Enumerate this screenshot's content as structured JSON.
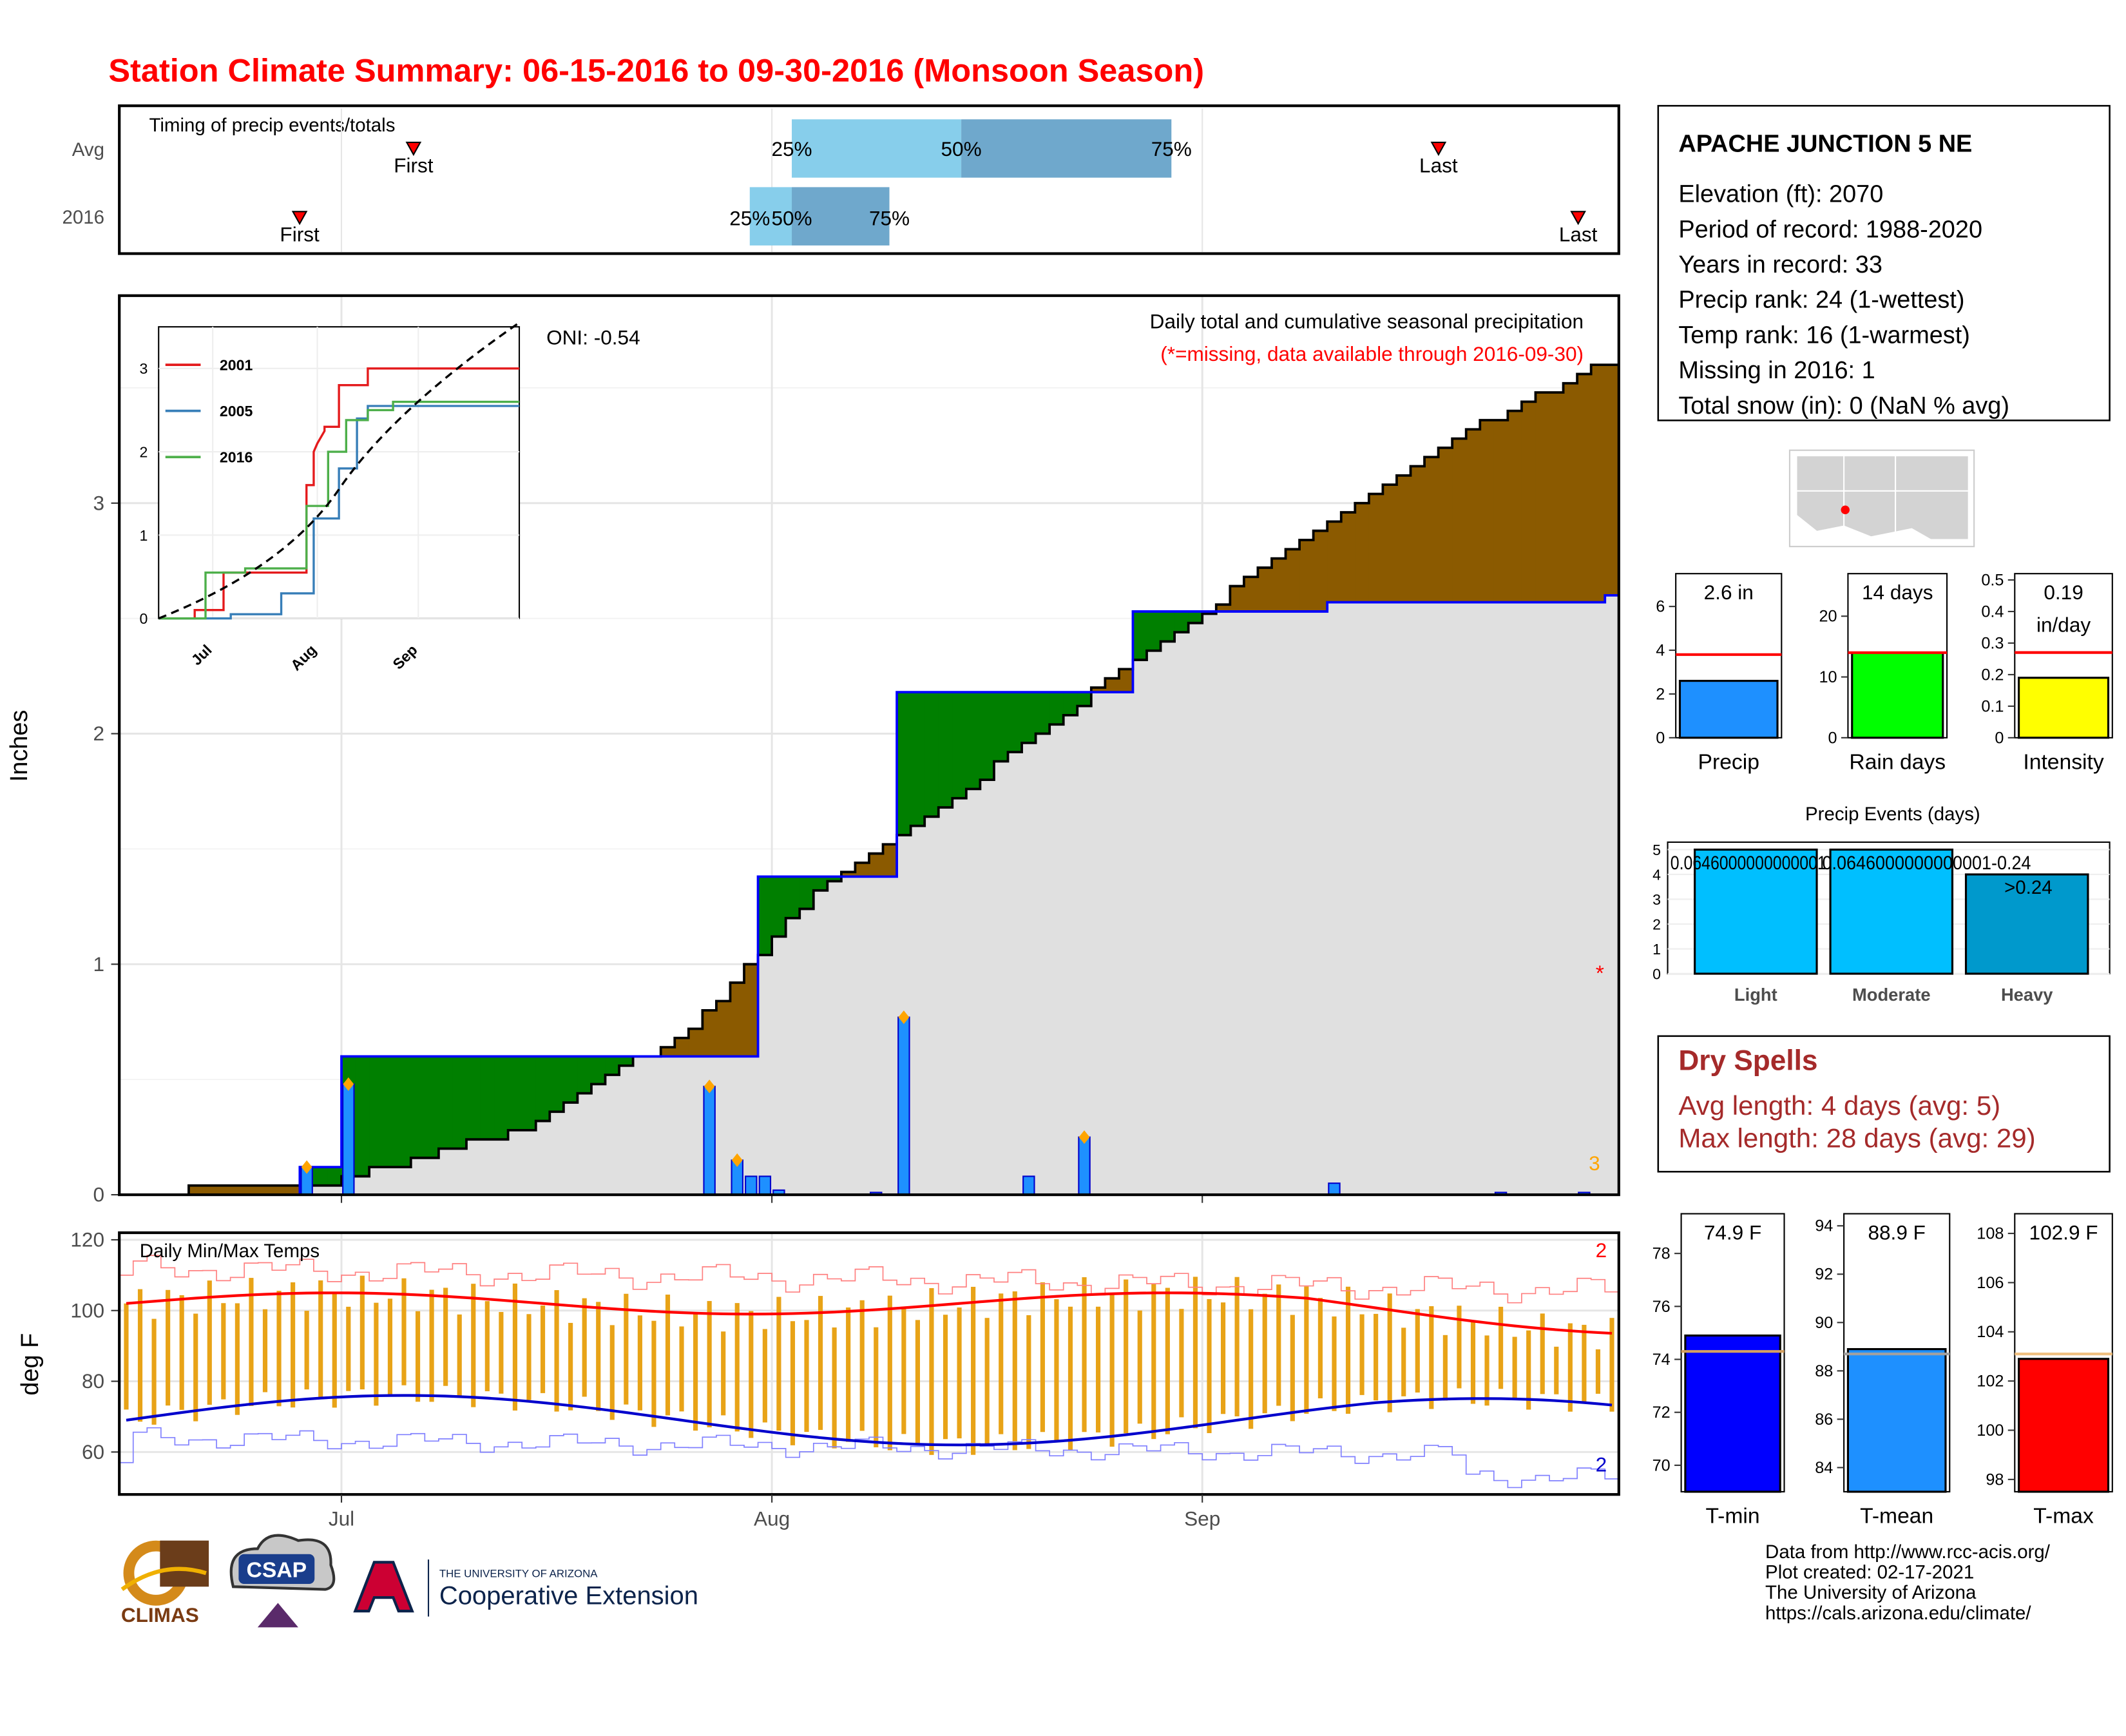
{
  "title": "Station Climate Summary: 06-15-2016 to 09-30-2016 (Monsoon Season)",
  "colors": {
    "title": "#ff0000",
    "accent_brown": "#8b5a00",
    "green": "#007f00",
    "blue_bar": "#1e90ff",
    "temp_bar": "#e8a317"
  },
  "timing": {
    "label": "Timing of precip events/totals",
    "rows": [
      "Avg",
      "2016"
    ],
    "first_label": "First",
    "last_label": "Last",
    "q25": "25%",
    "q50": "50%",
    "q75": "75%"
  },
  "station": {
    "name": "APACHE JUNCTION 5 NE",
    "lines": [
      "Elevation (ft): 2070",
      "Period of record: 1988-2020",
      "Years in record: 33",
      "Precip rank: 24 (1-wettest)",
      "Temp rank: 16 (1-warmest)",
      "Missing in 2016: 1",
      "Total snow (in): 0 (NaN % avg)"
    ]
  },
  "precip_panel": {
    "ylabel": "Inches",
    "caption1": "Daily total and cumulative seasonal precipitation",
    "caption2": "(*=missing, data available through 2016-09-30)",
    "oni": "ONI: -0.54",
    "missing_marker": "*",
    "count_label": "3"
  },
  "chart_data": [
    {
      "type": "line",
      "name": "cumulative_precip",
      "ylabel": "Inches",
      "ylim": [
        0,
        3.9
      ],
      "yticks": [
        0,
        1,
        2,
        3
      ],
      "xticks": [
        "Jul",
        "Aug",
        "Sep"
      ],
      "observed_2016": {
        "x": [
          "2016-06-15",
          "2016-06-28",
          "2016-07-01",
          "2016-07-27",
          "2016-07-31",
          "2016-08-10",
          "2016-08-27",
          "2016-09-10",
          "2016-09-30"
        ],
        "y": [
          0,
          0.12,
          0.6,
          0.6,
          1.38,
          2.18,
          2.53,
          2.57,
          2.6
        ]
      },
      "average": {
        "x": [
          "2016-06-15",
          "2016-07-01",
          "2016-07-15",
          "2016-07-27",
          "2016-08-05",
          "2016-08-15",
          "2016-08-27",
          "2016-09-10",
          "2016-09-20",
          "2016-09-30"
        ],
        "y": [
          0,
          0.06,
          0.3,
          0.75,
          1.35,
          1.75,
          2.3,
          2.9,
          3.3,
          3.6
        ]
      },
      "daily": {
        "x": [
          "2016-06-28",
          "2016-07-01",
          "2016-07-27",
          "2016-07-29",
          "2016-07-30",
          "2016-07-31",
          "2016-08-01",
          "2016-08-08",
          "2016-08-10",
          "2016-08-19",
          "2016-08-23",
          "2016-09-10",
          "2016-09-22",
          "2016-09-28"
        ],
        "y": [
          0.12,
          0.48,
          0.47,
          0.15,
          0.08,
          0.08,
          0.02,
          0.01,
          0.77,
          0.08,
          0.25,
          0.05,
          0.01,
          0.01
        ]
      }
    },
    {
      "type": "line",
      "name": "inset_cumulative",
      "legend": [
        "2001",
        "2005",
        "2016"
      ],
      "legend_colors": [
        "#e41a1c",
        "#377eb8",
        "#4daf4a"
      ],
      "ylim": [
        0,
        3.5
      ],
      "yticks": [
        0,
        1,
        2,
        3
      ],
      "xticks": [
        "Jul",
        "Aug",
        "Sep"
      ]
    },
    {
      "type": "bar",
      "name": "precip_total",
      "categories": [
        "Precip"
      ],
      "values": [
        2.6
      ],
      "avg": 3.8,
      "ylim": [
        0,
        7.5
      ],
      "yticks": [
        0,
        2,
        4,
        6
      ],
      "label": "2.6 in"
    },
    {
      "type": "bar",
      "name": "rain_days",
      "categories": [
        "Rain days"
      ],
      "values": [
        14
      ],
      "avg": 14,
      "ylim": [
        0,
        27
      ],
      "yticks": [
        0,
        10,
        20
      ],
      "label": "14 days"
    },
    {
      "type": "bar",
      "name": "intensity",
      "categories": [
        "Intensity"
      ],
      "values": [
        0.19
      ],
      "avg": 0.27,
      "ylim": [
        0,
        0.52
      ],
      "yticks": [
        0.0,
        0.1,
        0.2,
        0.3,
        0.4,
        0.5
      ],
      "label1": "0.19",
      "label2": "in/day"
    },
    {
      "type": "bar",
      "name": "precip_events",
      "title": "Precip Events (days)",
      "categories": [
        "Light",
        "Moderate",
        "Heavy"
      ],
      "values": [
        5,
        5,
        4
      ],
      "ylim": [
        0,
        5.3
      ],
      "yticks": [
        0,
        1,
        2,
        3,
        4,
        5
      ],
      "bar_labels": [
        "0.0646000000000001",
        "0.0646000000000001-0.24",
        ">0.24"
      ]
    },
    {
      "type": "bar",
      "name": "temps",
      "title": "Daily Min/Max Temps",
      "ylabel": "deg F",
      "ylim": [
        48,
        122
      ],
      "yticks": [
        60,
        80,
        100,
        120
      ],
      "xticks": [
        "Jul",
        "Aug",
        "Sep"
      ],
      "count_label": "2"
    },
    {
      "type": "bar",
      "name": "tmin",
      "categories": [
        "T-min"
      ],
      "values": [
        74.9
      ],
      "avg": 74.3,
      "ylim": [
        69,
        79.5
      ],
      "yticks": [
        70,
        72,
        74,
        76,
        78
      ],
      "label": "74.9 F"
    },
    {
      "type": "bar",
      "name": "tmean",
      "categories": [
        "T-mean"
      ],
      "values": [
        88.9
      ],
      "avg": 88.7,
      "ylim": [
        83,
        94.5
      ],
      "yticks": [
        84,
        86,
        88,
        90,
        92,
        94
      ],
      "label": "88.9 F"
    },
    {
      "type": "bar",
      "name": "tmax",
      "categories": [
        "T-max"
      ],
      "values": [
        102.9
      ],
      "avg": 103.1,
      "ylim": [
        97.5,
        108.8
      ],
      "yticks": [
        98,
        100,
        102,
        104,
        106,
        108
      ],
      "label": "102.9 F"
    }
  ],
  "dry_spells": {
    "title": "Dry Spells",
    "avg_line": "Avg length: 4 days (avg: 5)",
    "max_line": "Max length: 28 days (avg: 29)"
  },
  "footer": {
    "lines": [
      "Data from http://www.rcc-acis.org/",
      "Plot created: 02-17-2021",
      "The University of Arizona",
      "https://cals.arizona.edu/climate/"
    ],
    "logo_climas": "CLIMAS",
    "logo_csap": "CSAP",
    "logo_ua_line1": "THE UNIVERSITY OF ARIZONA",
    "logo_ua_line2": "Cooperative Extension"
  }
}
